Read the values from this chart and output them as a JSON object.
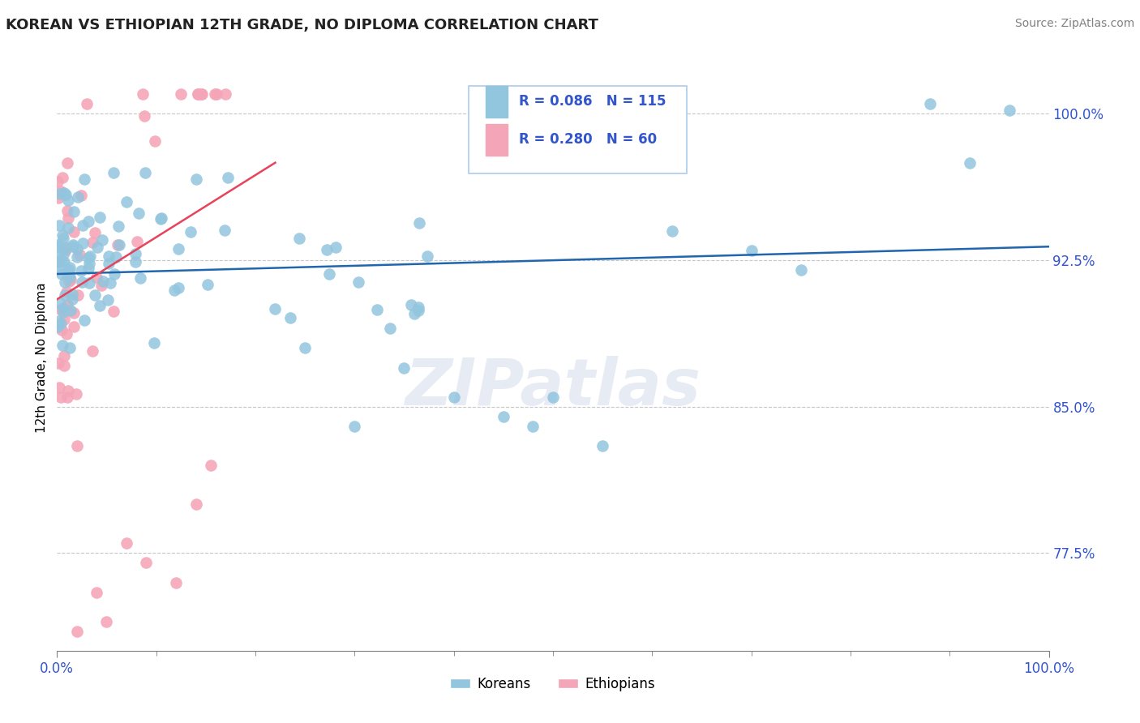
{
  "title": "KOREAN VS ETHIOPIAN 12TH GRADE, NO DIPLOMA CORRELATION CHART",
  "source": "Source: ZipAtlas.com",
  "ylabel": "12th Grade, No Diploma",
  "xlim": [
    0.0,
    1.0
  ],
  "ylim": [
    0.725,
    1.025
  ],
  "yticks": [
    0.775,
    0.85,
    0.925,
    1.0
  ],
  "ytick_labels": [
    "77.5%",
    "85.0%",
    "92.5%",
    "100.0%"
  ],
  "xtick_positions": [
    0.0,
    1.0
  ],
  "xtick_labels": [
    "0.0%",
    "100.0%"
  ],
  "korean_color": "#92c5de",
  "ethiopian_color": "#f4a6b8",
  "korean_line_color": "#2166ac",
  "ethiopian_line_color": "#e8435a",
  "korean_R": 0.086,
  "korean_N": 115,
  "ethiopian_R": 0.28,
  "ethiopian_N": 60,
  "legend_korean": "Koreans",
  "legend_ethiopian": "Ethiopians",
  "watermark": "ZIPatlas",
  "background_color": "#ffffff",
  "grid_color": "#b0b0b0",
  "title_color": "#222222",
  "axis_label_color": "#3355cc",
  "tick_label_color": "#3355cc"
}
